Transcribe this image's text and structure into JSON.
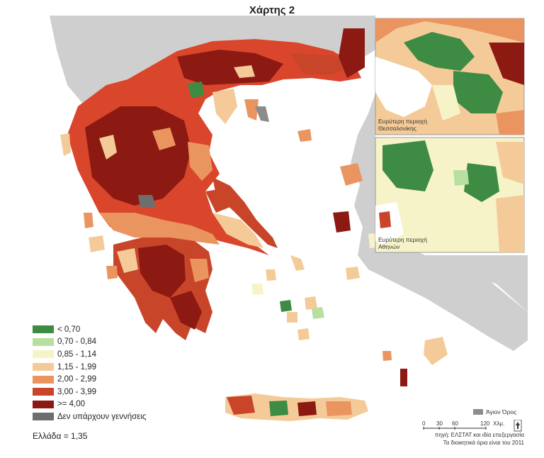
{
  "title": "Χάρτης 2",
  "legend": [
    {
      "label": "< 0,70",
      "color": "#3e8b44"
    },
    {
      "label": "0,70 - 0,84",
      "color": "#b7dfa0"
    },
    {
      "label": "0,85 - 1,14",
      "color": "#f7f3c9"
    },
    {
      "label": "1,15 - 1,99",
      "color": "#f4cb98"
    },
    {
      "label": "2,00 - 2,99",
      "color": "#ea9560"
    },
    {
      "label": "3,00 - 3,99",
      "color": "#c9452a"
    },
    {
      "label": ">= 4,00",
      "color": "#8c1a12"
    },
    {
      "label": "Δεν υπάρχουν γεννήσεις",
      "color": "#6e6e6e"
    }
  ],
  "greece_total": "Ελλάδα = 1,35",
  "inset_thessaloniki": "Ευρύτερη περιοχή\nΘεσσαλονίκης",
  "inset_athens": "Ευρύτερη περιοχή\nΑθηνών",
  "mount_athos": "Άγιον Όρος",
  "scale": {
    "ticks": [
      "0",
      "30",
      "60",
      "120"
    ],
    "unit": "Χλμ."
  },
  "source_line1": "πηγή: ΕΛΣΤΑΤ και ιδία επεξεργασία",
  "source_line2": "Τα διοικητικά όρια είναι του 2011",
  "colors": {
    "neighbor_land": "#cfcfcf",
    "sea": "#ffffff"
  }
}
